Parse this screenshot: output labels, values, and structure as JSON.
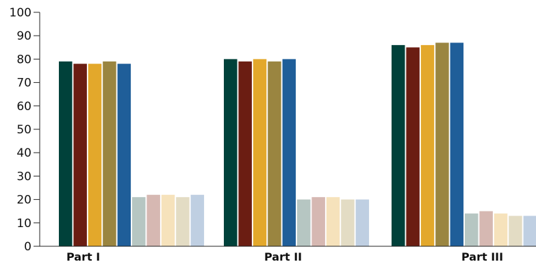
{
  "chart_data": {
    "type": "bar",
    "title": "",
    "xlabel": "",
    "ylabel": "",
    "ylim": [
      0,
      100
    ],
    "yticks": [
      0,
      10,
      20,
      30,
      40,
      50,
      60,
      70,
      80,
      90,
      100
    ],
    "grid": false,
    "legend": "none",
    "categories": [
      "Part I",
      "Part II",
      "Part III"
    ],
    "series": [
      {
        "color": "#00413a",
        "values": [
          79,
          80,
          86
        ]
      },
      {
        "color": "#6b1d12",
        "values": [
          78,
          79,
          85
        ]
      },
      {
        "color": "#e3a82b",
        "values": [
          78,
          80,
          86
        ]
      },
      {
        "color": "#9a8540",
        "values": [
          79,
          79,
          87
        ]
      },
      {
        "color": "#1f5e99",
        "values": [
          78,
          80,
          87
        ]
      },
      {
        "color": "#b6c6c2",
        "values": [
          21,
          20,
          14
        ]
      },
      {
        "color": "#d6b8b2",
        "values": [
          22,
          21,
          15
        ]
      },
      {
        "color": "#f6e2bb",
        "values": [
          22,
          21,
          14
        ]
      },
      {
        "color": "#e3dcc4",
        "values": [
          21,
          20,
          13
        ]
      },
      {
        "color": "#bfcfe2",
        "values": [
          22,
          20,
          13
        ]
      }
    ]
  }
}
